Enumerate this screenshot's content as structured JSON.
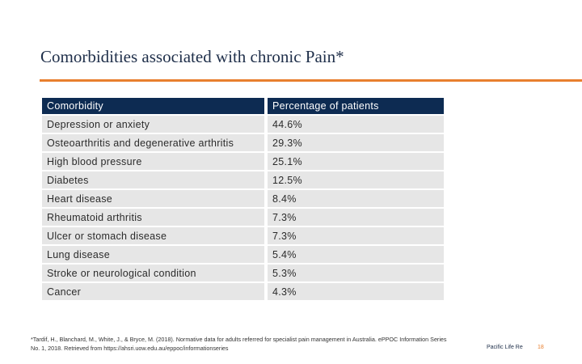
{
  "slide": {
    "title": "Comorbidities associated with chronic Pain*",
    "accent_color": "#e87f2e",
    "header_color": "#0d2b52"
  },
  "table": {
    "columns": [
      "Comorbidity",
      "Percentage of patients"
    ],
    "rows": [
      [
        "Depression or anxiety",
        "44.6%"
      ],
      [
        "Osteoarthritis and degenerative arthritis",
        "29.3%"
      ],
      [
        "High blood pressure",
        "25.1%"
      ],
      [
        "Diabetes",
        "12.5%"
      ],
      [
        "Heart disease",
        "8.4%"
      ],
      [
        "Rheumatoid arthritis",
        "7.3%"
      ],
      [
        "Ulcer or stomach disease",
        "7.3%"
      ],
      [
        "Lung disease",
        "5.4%"
      ],
      [
        "Stroke or neurological condition",
        "5.3%"
      ],
      [
        "Cancer",
        "4.3%"
      ]
    ]
  },
  "footer": {
    "reference": "*Tardif, H., Blanchard, M., White, J., & Bryce, M. (2018). Normative data for adults referred for specialist pain management in Australia. ePPOC Information Series No. 1, 2018. Retrieved from https://ahsri.uow.edu.au/eppoc/informationseries",
    "brand": "Pacific Life Re",
    "page_number": "18"
  }
}
